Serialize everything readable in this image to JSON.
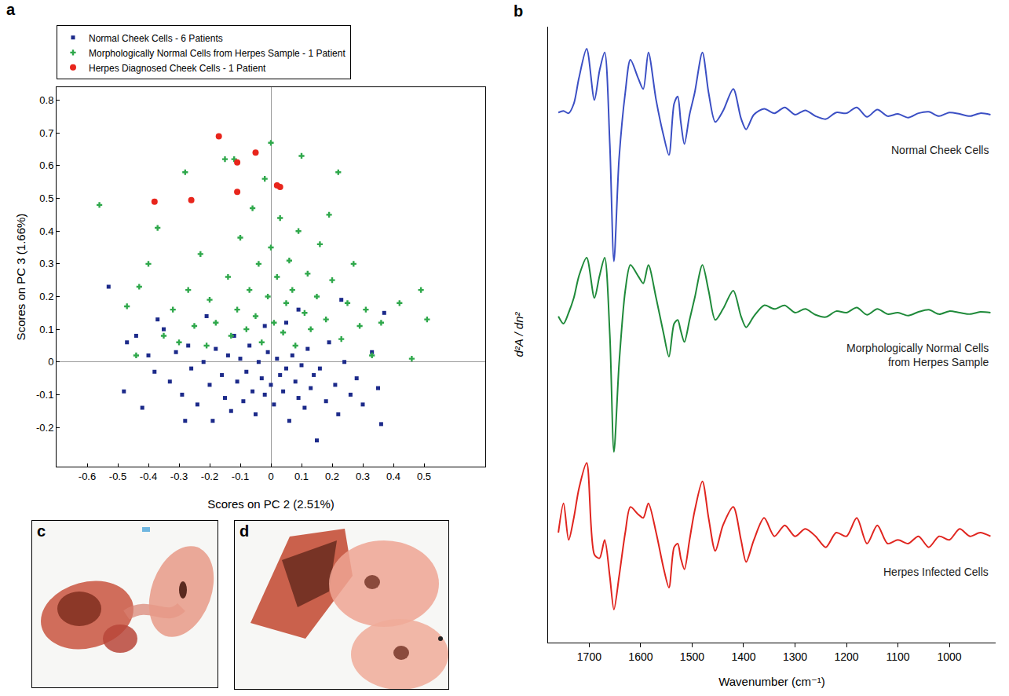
{
  "chart_data": [
    {
      "panel": "a",
      "type": "scatter",
      "x_label": "Scores on PC 2 (2.51%)",
      "y_label": "Scores on PC 3 (1.66%)",
      "xlim": [
        -0.7,
        0.7
      ],
      "ylim": [
        -0.32,
        0.84
      ],
      "xticks": [
        -0.6,
        -0.5,
        -0.4,
        -0.3,
        -0.2,
        -0.1,
        0,
        0.1,
        0.2,
        0.3,
        0.4,
        0.5
      ],
      "yticks": [
        -0.2,
        -0.1,
        0,
        0.1,
        0.2,
        0.3,
        0.4,
        0.5,
        0.6,
        0.7,
        0.8
      ],
      "grid": false,
      "legend": "top",
      "series": [
        {
          "name": "Normal Cheek Cells - 6 Patients",
          "color": "#1c2a8a",
          "marker": "square",
          "x": [
            -0.53,
            -0.47,
            -0.44,
            -0.4,
            -0.38,
            -0.35,
            -0.33,
            -0.31,
            -0.29,
            -0.27,
            -0.26,
            -0.24,
            -0.22,
            -0.21,
            -0.2,
            -0.19,
            -0.18,
            -0.16,
            -0.15,
            -0.14,
            -0.13,
            -0.12,
            -0.11,
            -0.1,
            -0.09,
            -0.08,
            -0.07,
            -0.06,
            -0.05,
            -0.04,
            -0.03,
            -0.02,
            -0.01,
            0.0,
            0.01,
            0.02,
            0.03,
            0.04,
            0.05,
            0.06,
            0.07,
            0.08,
            0.09,
            0.1,
            0.11,
            0.12,
            0.13,
            0.14,
            0.15,
            0.16,
            0.18,
            0.19,
            0.21,
            0.22,
            0.24,
            0.26,
            0.28,
            0.3,
            0.33,
            0.35,
            0.37,
            0.36,
            -0.48,
            -0.42,
            -0.02,
            0.09,
            -0.28,
            0.23,
            0.05,
            -0.37
          ],
          "values": [
            0.23,
            0.06,
            0.08,
            0.02,
            -0.03,
            0.1,
            -0.06,
            0.03,
            -0.1,
            0.05,
            -0.02,
            -0.13,
            0.0,
            0.14,
            -0.07,
            -0.18,
            0.04,
            -0.04,
            -0.11,
            0.02,
            -0.15,
            0.08,
            -0.06,
            0.01,
            -0.12,
            -0.03,
            0.05,
            -0.09,
            -0.16,
            0.0,
            -0.05,
            -0.1,
            0.03,
            -0.07,
            -0.13,
            0.01,
            -0.04,
            -0.09,
            -0.02,
            -0.18,
            0.02,
            -0.06,
            -0.11,
            -0.01,
            -0.14,
            0.04,
            -0.08,
            -0.04,
            -0.24,
            -0.02,
            -0.12,
            0.06,
            -0.07,
            -0.16,
            0.0,
            -0.1,
            -0.05,
            -0.13,
            0.03,
            -0.08,
            0.15,
            -0.19,
            -0.09,
            -0.14,
            0.11,
            0.16,
            -0.18,
            0.19,
            0.12,
            0.13
          ]
        },
        {
          "name": "Morphologically Normal Cells from Herpes Sample - 1 Patient",
          "color": "#2fa84b",
          "marker": "cross",
          "x": [
            -0.56,
            -0.47,
            -0.43,
            -0.4,
            -0.37,
            -0.35,
            -0.32,
            -0.3,
            -0.28,
            -0.27,
            -0.25,
            -0.23,
            -0.21,
            -0.2,
            -0.18,
            -0.15,
            -0.14,
            -0.13,
            -0.12,
            -0.11,
            -0.1,
            -0.08,
            -0.07,
            -0.06,
            -0.05,
            -0.04,
            -0.03,
            -0.02,
            -0.01,
            0.0,
            0.0,
            0.01,
            0.02,
            0.03,
            0.04,
            0.05,
            0.06,
            0.07,
            0.08,
            0.09,
            0.1,
            0.11,
            0.12,
            0.13,
            0.15,
            0.16,
            0.18,
            0.2,
            0.22,
            0.23,
            0.25,
            0.27,
            0.29,
            0.31,
            0.33,
            0.36,
            0.42,
            0.46,
            0.49,
            0.51,
            -0.44,
            0.19
          ],
          "values": [
            0.48,
            0.17,
            0.23,
            0.3,
            0.41,
            0.08,
            0.16,
            0.06,
            0.58,
            0.22,
            0.11,
            0.33,
            0.05,
            0.19,
            0.12,
            0.62,
            0.26,
            0.08,
            0.62,
            0.16,
            0.38,
            0.1,
            0.22,
            0.47,
            0.14,
            0.3,
            0.06,
            0.56,
            0.2,
            0.67,
            0.35,
            0.12,
            0.26,
            0.44,
            0.09,
            0.18,
            0.31,
            0.22,
            0.05,
            0.4,
            0.63,
            0.15,
            0.27,
            0.1,
            0.2,
            0.36,
            0.13,
            0.25,
            0.58,
            0.07,
            0.18,
            0.3,
            0.11,
            0.16,
            0.02,
            0.12,
            0.18,
            0.01,
            0.22,
            0.13,
            0.02,
            0.45
          ]
        },
        {
          "name": "Herpes Diagnosed Cheek Cells - 1 Patient",
          "color": "#e8251c",
          "marker": "circle",
          "x": [
            -0.17,
            -0.05,
            -0.11,
            -0.11,
            0.02,
            0.03,
            -0.38,
            -0.26
          ],
          "values": [
            0.69,
            0.64,
            0.61,
            0.52,
            0.54,
            0.535,
            0.49,
            0.495
          ]
        }
      ]
    },
    {
      "panel": "b",
      "type": "line",
      "x_label": "Wavenumber (cm⁻¹)",
      "y_label": "d²A / dn²",
      "xlim": [
        1780,
        910
      ],
      "ylim": [
        -72,
        12
      ],
      "xticks": [
        1700,
        1600,
        1500,
        1400,
        1300,
        1200,
        1100,
        1000
      ],
      "yticks": [],
      "tick_labels": "x",
      "grid": false,
      "x": [
        1760,
        1750,
        1740,
        1730,
        1720,
        1705,
        1690,
        1680,
        1670,
        1660,
        1652,
        1642,
        1630,
        1620,
        1605,
        1595,
        1585,
        1570,
        1555,
        1545,
        1535,
        1528,
        1522,
        1515,
        1505,
        1495,
        1480,
        1468,
        1455,
        1440,
        1420,
        1405,
        1395,
        1380,
        1360,
        1340,
        1320,
        1300,
        1280,
        1260,
        1240,
        1220,
        1200,
        1180,
        1160,
        1140,
        1120,
        1100,
        1080,
        1060,
        1040,
        1020,
        1000,
        980,
        960,
        940,
        920
      ],
      "series": [
        {
          "name": "Normal Cheek Cells",
          "color": "#3b4fc4",
          "values": [
            0.3,
            0.5,
            0.2,
            1.5,
            5,
            9,
            2,
            6,
            8.5,
            -4,
            -20,
            -6,
            3,
            7.5,
            5,
            3.5,
            8.5,
            2,
            -3,
            -5.5,
            1.5,
            2.5,
            -1,
            -4,
            0,
            3,
            8.5,
            3,
            -1,
            0.5,
            3.5,
            -0.5,
            -2,
            0,
            0.8,
            0.2,
            1,
            0,
            0.6,
            -0.2,
            -0.6,
            0.3,
            0.2,
            1,
            -0.3,
            0.7,
            -0.2,
            0.1,
            -0.4,
            0.2,
            0.4,
            -0.2,
            0.3,
            0.1,
            -0.2,
            0.2,
            0
          ]
        },
        {
          "name": "Morphologically Normal Cells from Herpes Sample",
          "color": "#1f8a3a",
          "values": [
            -27.5,
            -28.5,
            -27,
            -25,
            -22,
            -19.5,
            -25,
            -22,
            -19.5,
            -30,
            -46,
            -34,
            -24,
            -20.5,
            -22,
            -23,
            -20.5,
            -25,
            -30,
            -33,
            -28.5,
            -28,
            -29.5,
            -31,
            -28,
            -25,
            -20.5,
            -24,
            -28,
            -26.5,
            -24,
            -27.5,
            -29,
            -27.5,
            -26,
            -26.5,
            -26,
            -27,
            -26.5,
            -27.3,
            -27.6,
            -26.8,
            -27,
            -26.3,
            -27.3,
            -26.5,
            -27.2,
            -27,
            -27.4,
            -26.9,
            -26.6,
            -27.2,
            -26.8,
            -27,
            -27.2,
            -26.9,
            -27
          ]
        },
        {
          "name": "Herpes Infected Cells",
          "color": "#e0251f",
          "values": [
            -57,
            -53,
            -58,
            -55,
            -51,
            -47.5,
            -60,
            -60.5,
            -58,
            -63,
            -67.5,
            -63,
            -57,
            -53.5,
            -54.5,
            -55,
            -53,
            -57,
            -62,
            -64.5,
            -59,
            -58.5,
            -60.5,
            -62,
            -58,
            -54,
            -50,
            -55,
            -59.5,
            -56,
            -53.5,
            -58,
            -61,
            -58,
            -55,
            -57.5,
            -56,
            -57.5,
            -56.5,
            -57.5,
            -59,
            -57,
            -57.5,
            -55,
            -58.5,
            -56,
            -58.5,
            -58,
            -58.5,
            -57.5,
            -59,
            -57.5,
            -58,
            -56.5,
            -57.5,
            -57,
            -57.5
          ]
        }
      ]
    }
  ],
  "images": [
    {
      "panel": "c"
    },
    {
      "panel": "d"
    }
  ]
}
